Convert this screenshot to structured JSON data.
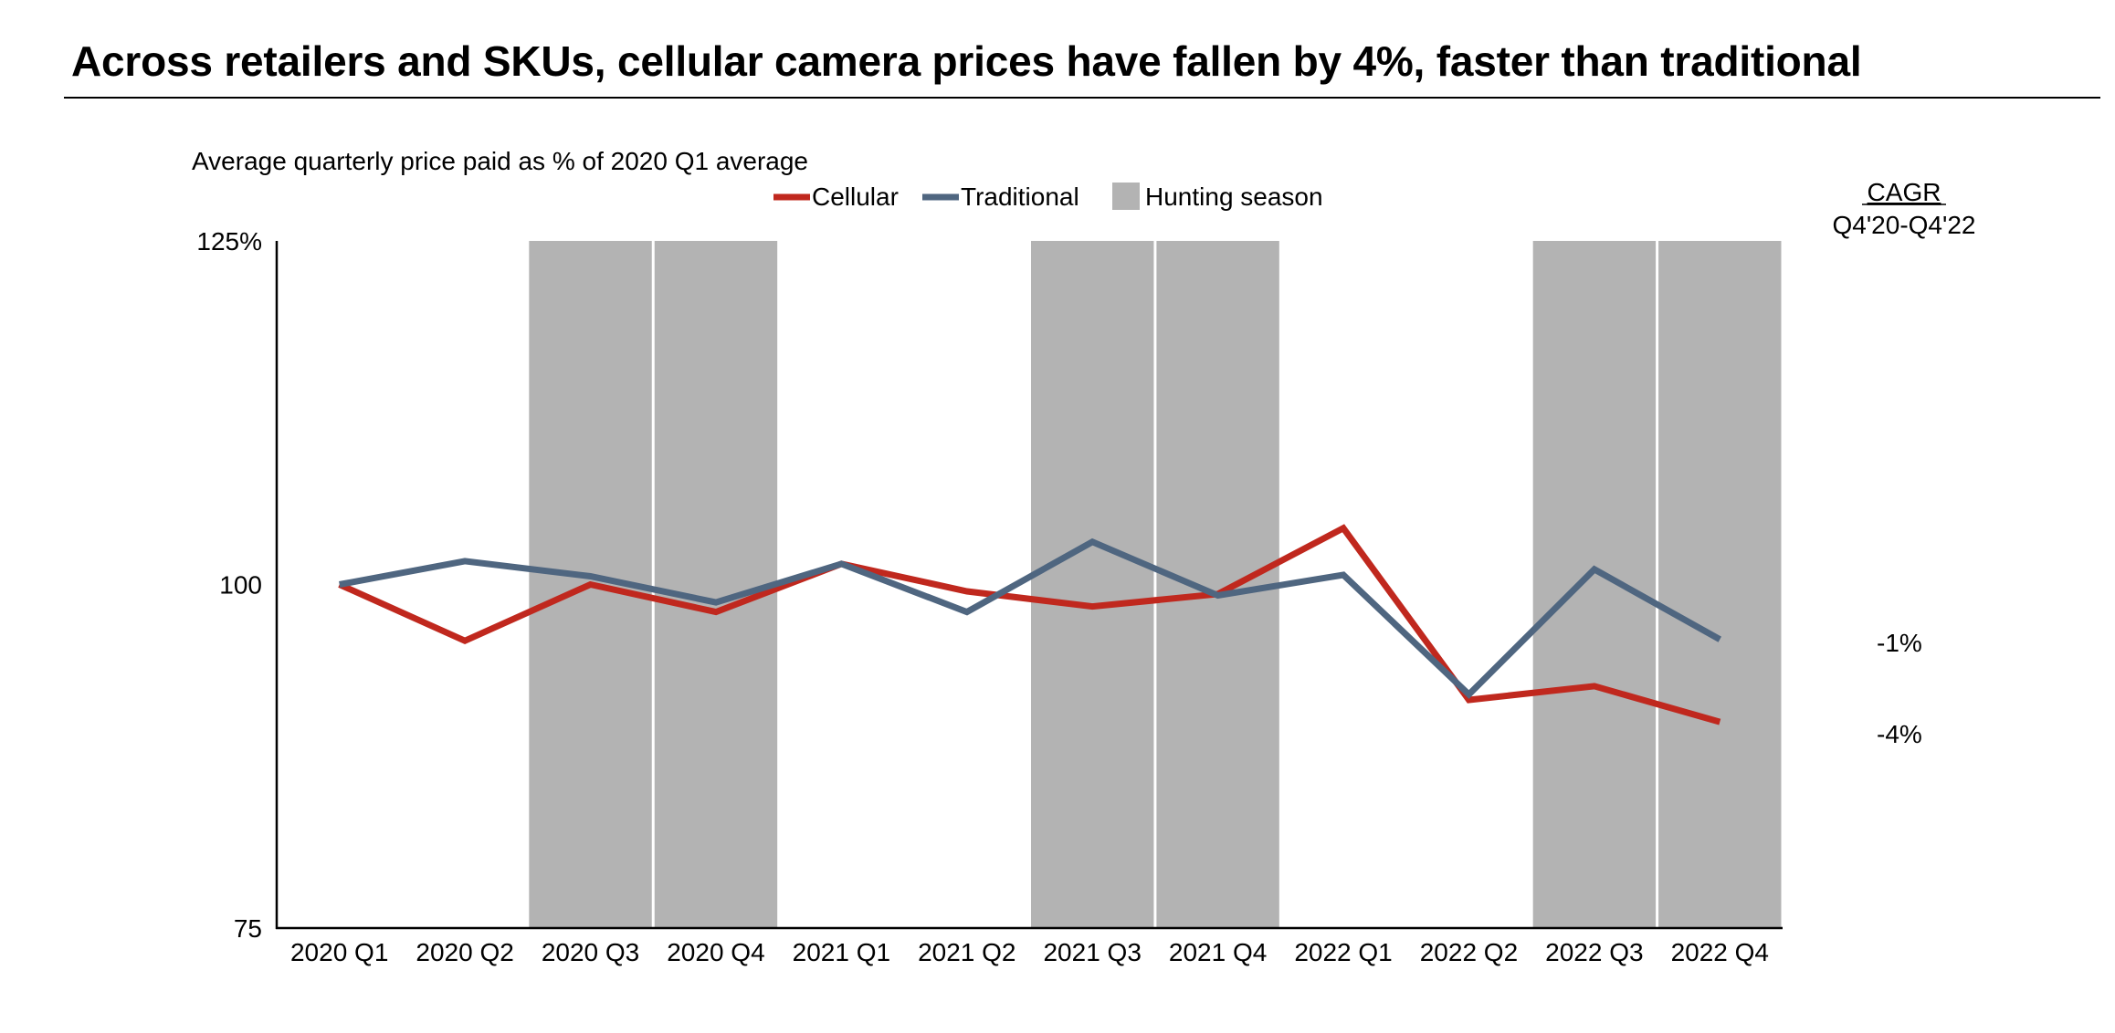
{
  "title": "Across retailers and SKUs, cellular camera prices have fallen by 4%, faster than traditional",
  "colors": {
    "cellular": "#C0281E",
    "traditional": "#4F6680",
    "hunting_season": "#B3B3B3",
    "axis": "#000000"
  },
  "chart_data": {
    "type": "line",
    "subtitle": "Average quarterly price paid as % of 2020 Q1 average",
    "categories": [
      "2020 Q1",
      "2020 Q2",
      "2020 Q3",
      "2020 Q4",
      "2021 Q1",
      "2021 Q2",
      "2021 Q3",
      "2021 Q4",
      "2022 Q1",
      "2022 Q2",
      "2022 Q3",
      "2022 Q4"
    ],
    "ylim": [
      75,
      125
    ],
    "yticks": [
      {
        "value": 75,
        "label": "75"
      },
      {
        "value": 100,
        "label": "100"
      },
      {
        "value": 125,
        "label": "125%"
      }
    ],
    "series": [
      {
        "name": "Cellular",
        "values": [
          100,
          95.9,
          100,
          98.0,
          101.5,
          99.5,
          98.4,
          99.3,
          104.1,
          91.6,
          92.6,
          90.0
        ]
      },
      {
        "name": "Traditional",
        "values": [
          100,
          101.7,
          100.6,
          98.7,
          101.5,
          98.0,
          103.1,
          99.2,
          100.7,
          92.0,
          101.1,
          96.0
        ]
      }
    ],
    "shaded_categories": [
      "2020 Q3",
      "2020 Q4",
      "2021 Q3",
      "2021 Q4",
      "2022 Q3",
      "2022 Q4"
    ],
    "legend": {
      "placement": "top-center",
      "items": [
        "Cellular",
        "Traditional",
        "Hunting season"
      ]
    },
    "cagr": {
      "header": "CAGR",
      "subheader": "Q4'20-Q4'22",
      "values": [
        {
          "series": "Traditional",
          "label": "-1%"
        },
        {
          "series": "Cellular",
          "label": "-4%"
        }
      ]
    }
  }
}
